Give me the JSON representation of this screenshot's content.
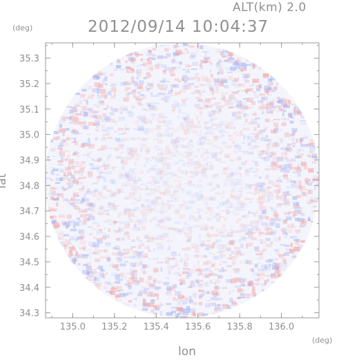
{
  "header": {
    "alt_label": "ALT(km)  2.0",
    "timestamp": "2012/09/14 10:04:37"
  },
  "chart_data": {
    "type": "heatmap",
    "title": "2012/09/14 10:04:37",
    "xlabel": "lon",
    "ylabel": "lat",
    "x_unit": "(deg)",
    "y_unit": "(deg)",
    "xlim": [
      134.87,
      136.18
    ],
    "ylim": [
      34.28,
      35.36
    ],
    "x_ticks": [
      135.0,
      135.2,
      135.4,
      135.6,
      135.8,
      136.0
    ],
    "y_ticks": [
      34.3,
      34.4,
      34.5,
      34.6,
      34.7,
      34.8,
      34.9,
      35.0,
      35.1,
      35.2,
      35.3
    ],
    "x_tick_labels": [
      "135.0",
      "135.2",
      "135.4",
      "135.6",
      "135.8",
      "136.0"
    ],
    "y_tick_labels": [
      "34.3",
      "34.4",
      "34.5",
      "34.6",
      "34.7",
      "34.8",
      "34.9",
      "35.0",
      "35.1",
      "35.2",
      "35.3"
    ],
    "coverage": {
      "center_lon": 135.525,
      "center_lat": 34.82,
      "radius_deg_lat": 0.54
    },
    "grid": false,
    "colors": {
      "positive": "#f2a8a8",
      "negative": "#a8b4f2",
      "neutral": "#f4f5fc",
      "axis": "#999999"
    }
  }
}
